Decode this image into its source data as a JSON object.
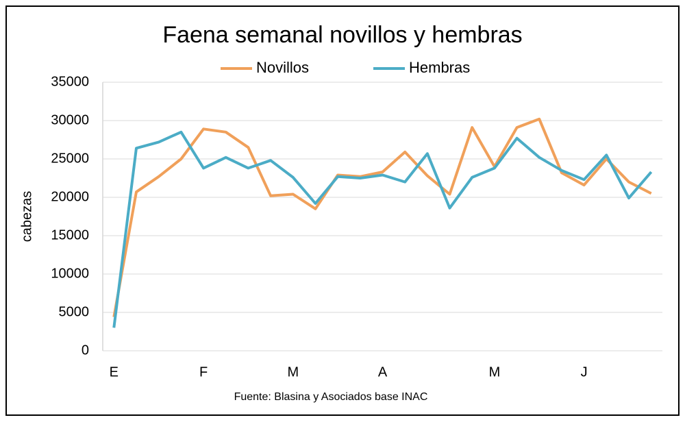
{
  "chart_data": {
    "type": "line",
    "title": "Faena semanal novillos y hembras",
    "y_label": "cabezas",
    "source": "Fuente: Blasina y Asociados base INAC",
    "categories": [
      "E",
      null,
      null,
      null,
      "F",
      null,
      null,
      null,
      "M",
      null,
      null,
      null,
      "A",
      null,
      null,
      null,
      null,
      "M",
      null,
      null,
      null,
      "J",
      null,
      null,
      null
    ],
    "series": [
      {
        "name": "Novillos",
        "color": "#f0a05a",
        "values": [
          4400,
          20700,
          22700,
          25000,
          28900,
          28500,
          26500,
          20200,
          20400,
          18500,
          22900,
          22700,
          23300,
          25900,
          22800,
          20400,
          29100,
          24000,
          29100,
          30200,
          23200,
          21600,
          25000,
          22000,
          20500
        ]
      },
      {
        "name": "Hembras",
        "color": "#4bacc6",
        "values": [
          3000,
          26400,
          27200,
          28500,
          23800,
          25200,
          23800,
          24800,
          22600,
          19200,
          22700,
          22500,
          22900,
          22000,
          25700,
          18600,
          22600,
          23800,
          27700,
          25200,
          23500,
          22300,
          25500,
          19900,
          23300
        ]
      }
    ],
    "ylim": [
      0,
      35000
    ],
    "yticks": [
      0,
      5000,
      10000,
      15000,
      20000,
      25000,
      30000,
      35000
    ],
    "grid": true,
    "legend": "top"
  }
}
